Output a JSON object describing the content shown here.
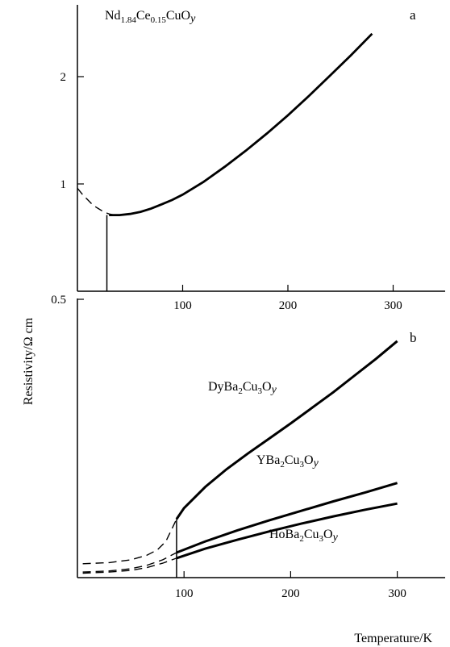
{
  "chart_data": [
    {
      "type": "line",
      "panel_label": "a",
      "title": "",
      "annotation": "Nd1.84Ce0.15CuOy",
      "xlabel": "",
      "ylabel": "",
      "xlim": [
        0,
        345
      ],
      "ylim": [
        0,
        2.6
      ],
      "x_ticks": [
        100,
        200,
        300
      ],
      "y_ticks": [
        1,
        2
      ],
      "series": [
        {
          "style": "dashed",
          "x": [
            0,
            5,
            10,
            15,
            20,
            25,
            30,
            35
          ],
          "y": [
            0.96,
            0.9,
            0.85,
            0.8,
            0.77,
            0.74,
            0.72,
            0.71
          ]
        },
        {
          "style": "solid",
          "x": [
            30,
            40,
            50,
            60,
            70,
            80,
            90,
            100,
            120,
            140,
            160,
            180,
            200,
            220,
            240,
            260,
            280
          ],
          "y": [
            0.71,
            0.71,
            0.72,
            0.74,
            0.77,
            0.81,
            0.85,
            0.9,
            1.02,
            1.16,
            1.31,
            1.47,
            1.64,
            1.82,
            2.01,
            2.2,
            2.4
          ]
        }
      ],
      "marker_line_x": 28
    },
    {
      "type": "line",
      "panel_label": "b",
      "title": "",
      "xlabel": "Temperature/K",
      "ylabel": "",
      "xlim": [
        0,
        345
      ],
      "ylim": [
        0,
        0.5
      ],
      "x_ticks": [
        100,
        200,
        300
      ],
      "y_ticks": [
        0.5
      ],
      "marker_line_x": 93,
      "series": [
        {
          "name": "DyBa2Cu3Oy",
          "name_parts": {
            "pre": "DyBa",
            "sub1": "2",
            "mid": "Cu",
            "sub2": "3",
            "post": "O",
            "sub3": "y"
          },
          "dashed": {
            "x": [
              5,
              30,
              50,
              65,
              75,
              83,
              88,
              93
            ],
            "y": [
              0.025,
              0.027,
              0.032,
              0.04,
              0.05,
              0.065,
              0.085,
              0.105
            ]
          },
          "solid": {
            "x": [
              93,
              100,
              120,
              140,
              160,
              180,
              200,
              220,
              240,
              260,
              280,
              300
            ],
            "y": [
              0.105,
              0.125,
              0.163,
              0.195,
              0.223,
              0.25,
              0.277,
              0.305,
              0.333,
              0.363,
              0.393,
              0.425
            ]
          }
        },
        {
          "name": "YBa2Cu3Oy",
          "name_parts": {
            "pre": "YBa",
            "sub1": "2",
            "mid": "Cu",
            "sub2": "3",
            "post": "O",
            "sub3": "y"
          },
          "dashed": {
            "x": [
              5,
              30,
              50,
              65,
              80,
              93
            ],
            "y": [
              0.01,
              0.012,
              0.016,
              0.022,
              0.032,
              0.045
            ]
          },
          "solid": {
            "x": [
              93,
              120,
              150,
              180,
              210,
              240,
              270,
              300
            ],
            "y": [
              0.045,
              0.065,
              0.085,
              0.103,
              0.12,
              0.137,
              0.153,
              0.17
            ]
          }
        },
        {
          "name": "HoBa2Cu3Oy",
          "name_parts": {
            "pre": "HoBa",
            "sub1": "2",
            "mid": "Cu",
            "sub2": "3",
            "post": "O",
            "sub3": "y"
          },
          "dashed": {
            "x": [
              5,
              30,
              50,
              65,
              80,
              93
            ],
            "y": [
              0.008,
              0.01,
              0.013,
              0.018,
              0.026,
              0.035
            ]
          },
          "solid": {
            "x": [
              93,
              120,
              150,
              180,
              210,
              240,
              270,
              300
            ],
            "y": [
              0.035,
              0.052,
              0.068,
              0.083,
              0.097,
              0.11,
              0.122,
              0.133
            ]
          }
        }
      ]
    }
  ],
  "shared_ylabel": "Resistivity/Ω cm",
  "annotation_a_parts": {
    "pre": "Nd",
    "sub1": "1.84",
    "mid": "Ce",
    "sub2": "0.15",
    "post": "CuO",
    "sub3": "y"
  }
}
